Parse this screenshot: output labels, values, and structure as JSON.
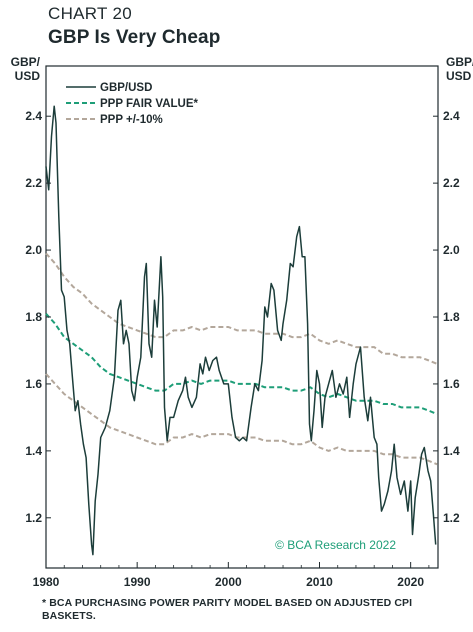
{
  "header": {
    "label": "CHART 20",
    "title": "GBP Is Very Cheap"
  },
  "footnote": "* BCA PURCHASING POWER PARITY MODEL BASED ON ADJUSTED CPI BASKETS.",
  "watermark": "© BCA Research 2022",
  "colors": {
    "gbpusd": "#1c3d3a",
    "ppp": "#1e9e78",
    "band": "#b3a79b",
    "frame": "#1f2a2e"
  },
  "chart_data": {
    "type": "line",
    "title": "GBP Is Very Cheap",
    "ylabel_left": "GBP/\nUSD",
    "ylabel_right": "GBP/\nUSD",
    "xlim": [
      1980,
      2023
    ],
    "ylim": [
      1.05,
      2.55
    ],
    "yticks": [
      1.2,
      1.4,
      1.6,
      1.8,
      2.0,
      2.2,
      2.4
    ],
    "ytick_labels": [
      "1.2",
      "1.4",
      "1.6",
      "1.8",
      "2.0",
      "2.2",
      "2.4"
    ],
    "xticks": [
      1980,
      1990,
      2000,
      2010,
      2020
    ],
    "xtick_labels": [
      "1980",
      "1990",
      "2000",
      "2010",
      "2020"
    ],
    "grid": false,
    "legend_position": "top-left",
    "legend": [
      {
        "label": "GBP/USD",
        "style": "solid",
        "color_key": "gbpusd"
      },
      {
        "label": "PPP FAIR VALUE*",
        "style": "dashed",
        "color_key": "ppp"
      },
      {
        "label": "PPP +/-10%",
        "style": "dashed",
        "color_key": "band"
      }
    ],
    "series": [
      {
        "name": "GBP/USD",
        "style": "solid",
        "points": [
          [
            1980.0,
            2.25
          ],
          [
            1980.3,
            2.18
          ],
          [
            1980.6,
            2.34
          ],
          [
            1980.9,
            2.43
          ],
          [
            1981.1,
            2.38
          ],
          [
            1981.4,
            2.1
          ],
          [
            1981.7,
            1.88
          ],
          [
            1982.0,
            1.86
          ],
          [
            1982.3,
            1.76
          ],
          [
            1982.6,
            1.72
          ],
          [
            1982.9,
            1.62
          ],
          [
            1983.2,
            1.52
          ],
          [
            1983.5,
            1.55
          ],
          [
            1983.8,
            1.48
          ],
          [
            1984.1,
            1.42
          ],
          [
            1984.4,
            1.38
          ],
          [
            1984.7,
            1.24
          ],
          [
            1985.0,
            1.12
          ],
          [
            1985.15,
            1.09
          ],
          [
            1985.4,
            1.25
          ],
          [
            1985.7,
            1.33
          ],
          [
            1986.0,
            1.44
          ],
          [
            1986.5,
            1.47
          ],
          [
            1987.0,
            1.52
          ],
          [
            1987.5,
            1.62
          ],
          [
            1987.9,
            1.82
          ],
          [
            1988.2,
            1.85
          ],
          [
            1988.5,
            1.72
          ],
          [
            1988.8,
            1.76
          ],
          [
            1989.1,
            1.72
          ],
          [
            1989.4,
            1.58
          ],
          [
            1989.7,
            1.55
          ],
          [
            1990.0,
            1.62
          ],
          [
            1990.4,
            1.68
          ],
          [
            1990.8,
            1.92
          ],
          [
            1991.0,
            1.96
          ],
          [
            1991.3,
            1.72
          ],
          [
            1991.6,
            1.68
          ],
          [
            1991.9,
            1.85
          ],
          [
            1992.2,
            1.77
          ],
          [
            1992.6,
            1.98
          ],
          [
            1992.8,
            1.86
          ],
          [
            1993.0,
            1.53
          ],
          [
            1993.3,
            1.43
          ],
          [
            1993.6,
            1.5
          ],
          [
            1994.0,
            1.5
          ],
          [
            1994.5,
            1.55
          ],
          [
            1995.0,
            1.58
          ],
          [
            1995.3,
            1.62
          ],
          [
            1995.6,
            1.56
          ],
          [
            1996.0,
            1.53
          ],
          [
            1996.5,
            1.56
          ],
          [
            1996.9,
            1.66
          ],
          [
            1997.2,
            1.63
          ],
          [
            1997.5,
            1.68
          ],
          [
            1997.9,
            1.64
          ],
          [
            1998.3,
            1.67
          ],
          [
            1998.7,
            1.68
          ],
          [
            1999.0,
            1.64
          ],
          [
            1999.5,
            1.6
          ],
          [
            2000.0,
            1.6
          ],
          [
            2000.4,
            1.5
          ],
          [
            2000.8,
            1.44
          ],
          [
            2001.2,
            1.43
          ],
          [
            2001.6,
            1.44
          ],
          [
            2002.0,
            1.43
          ],
          [
            2002.5,
            1.53
          ],
          [
            2002.9,
            1.6
          ],
          [
            2003.3,
            1.58
          ],
          [
            2003.7,
            1.67
          ],
          [
            2004.0,
            1.83
          ],
          [
            2004.3,
            1.8
          ],
          [
            2004.7,
            1.9
          ],
          [
            2005.0,
            1.88
          ],
          [
            2005.4,
            1.76
          ],
          [
            2005.8,
            1.73
          ],
          [
            2006.0,
            1.78
          ],
          [
            2006.4,
            1.85
          ],
          [
            2006.8,
            1.96
          ],
          [
            2007.1,
            1.95
          ],
          [
            2007.5,
            2.04
          ],
          [
            2007.8,
            2.07
          ],
          [
            2008.1,
            1.98
          ],
          [
            2008.4,
            1.98
          ],
          [
            2008.7,
            1.78
          ],
          [
            2008.9,
            1.48
          ],
          [
            2009.1,
            1.43
          ],
          [
            2009.4,
            1.52
          ],
          [
            2009.7,
            1.64
          ],
          [
            2010.0,
            1.6
          ],
          [
            2010.3,
            1.47
          ],
          [
            2010.6,
            1.56
          ],
          [
            2011.0,
            1.6
          ],
          [
            2011.4,
            1.64
          ],
          [
            2011.8,
            1.56
          ],
          [
            2012.2,
            1.6
          ],
          [
            2012.6,
            1.57
          ],
          [
            2013.0,
            1.62
          ],
          [
            2013.3,
            1.5
          ],
          [
            2013.7,
            1.6
          ],
          [
            2014.0,
            1.66
          ],
          [
            2014.5,
            1.71
          ],
          [
            2014.9,
            1.56
          ],
          [
            2015.3,
            1.49
          ],
          [
            2015.6,
            1.56
          ],
          [
            2016.0,
            1.44
          ],
          [
            2016.3,
            1.42
          ],
          [
            2016.5,
            1.32
          ],
          [
            2016.8,
            1.22
          ],
          [
            2017.1,
            1.24
          ],
          [
            2017.5,
            1.28
          ],
          [
            2017.9,
            1.34
          ],
          [
            2018.2,
            1.42
          ],
          [
            2018.5,
            1.32
          ],
          [
            2018.9,
            1.27
          ],
          [
            2019.3,
            1.31
          ],
          [
            2019.7,
            1.22
          ],
          [
            2020.0,
            1.31
          ],
          [
            2020.2,
            1.15
          ],
          [
            2020.5,
            1.26
          ],
          [
            2020.9,
            1.33
          ],
          [
            2021.2,
            1.39
          ],
          [
            2021.5,
            1.41
          ],
          [
            2021.9,
            1.34
          ],
          [
            2022.2,
            1.31
          ],
          [
            2022.5,
            1.21
          ],
          [
            2022.75,
            1.12
          ]
        ]
      },
      {
        "name": "PPP FAIR VALUE*",
        "style": "dashed",
        "points": [
          [
            1980.0,
            1.81
          ],
          [
            1981.0,
            1.78
          ],
          [
            1982.0,
            1.74
          ],
          [
            1983.0,
            1.72
          ],
          [
            1984.0,
            1.7
          ],
          [
            1985.0,
            1.68
          ],
          [
            1986.0,
            1.65
          ],
          [
            1987.0,
            1.63
          ],
          [
            1988.0,
            1.62
          ],
          [
            1989.0,
            1.61
          ],
          [
            1990.0,
            1.6
          ],
          [
            1991.0,
            1.59
          ],
          [
            1992.0,
            1.58
          ],
          [
            1993.0,
            1.58
          ],
          [
            1994.0,
            1.6
          ],
          [
            1995.0,
            1.6
          ],
          [
            1996.0,
            1.61
          ],
          [
            1997.0,
            1.6
          ],
          [
            1998.0,
            1.61
          ],
          [
            1999.0,
            1.61
          ],
          [
            2000.0,
            1.61
          ],
          [
            2001.0,
            1.6
          ],
          [
            2002.0,
            1.6
          ],
          [
            2003.0,
            1.6
          ],
          [
            2004.0,
            1.59
          ],
          [
            2005.0,
            1.59
          ],
          [
            2006.0,
            1.59
          ],
          [
            2007.0,
            1.58
          ],
          [
            2008.0,
            1.58
          ],
          [
            2009.0,
            1.59
          ],
          [
            2010.0,
            1.57
          ],
          [
            2011.0,
            1.56
          ],
          [
            2012.0,
            1.57
          ],
          [
            2013.0,
            1.56
          ],
          [
            2014.0,
            1.55
          ],
          [
            2015.0,
            1.55
          ],
          [
            2016.0,
            1.55
          ],
          [
            2017.0,
            1.54
          ],
          [
            2018.0,
            1.54
          ],
          [
            2019.0,
            1.53
          ],
          [
            2020.0,
            1.53
          ],
          [
            2021.0,
            1.53
          ],
          [
            2022.0,
            1.52
          ],
          [
            2022.9,
            1.51
          ]
        ]
      },
      {
        "name": "PPP +/-10%",
        "style": "dashed",
        "points": [
          [
            1980.0,
            1.99
          ],
          [
            1981.0,
            1.96
          ],
          [
            1982.0,
            1.92
          ],
          [
            1983.0,
            1.89
          ],
          [
            1984.0,
            1.87
          ],
          [
            1985.0,
            1.84
          ],
          [
            1986.0,
            1.82
          ],
          [
            1987.0,
            1.8
          ],
          [
            1988.0,
            1.78
          ],
          [
            1989.0,
            1.77
          ],
          [
            1990.0,
            1.76
          ],
          [
            1991.0,
            1.75
          ],
          [
            1992.0,
            1.74
          ],
          [
            1993.0,
            1.74
          ],
          [
            1994.0,
            1.76
          ],
          [
            1995.0,
            1.76
          ],
          [
            1996.0,
            1.77
          ],
          [
            1997.0,
            1.76
          ],
          [
            1998.0,
            1.77
          ],
          [
            1999.0,
            1.77
          ],
          [
            2000.0,
            1.77
          ],
          [
            2001.0,
            1.76
          ],
          [
            2002.0,
            1.76
          ],
          [
            2003.0,
            1.76
          ],
          [
            2004.0,
            1.75
          ],
          [
            2005.0,
            1.75
          ],
          [
            2006.0,
            1.75
          ],
          [
            2007.0,
            1.74
          ],
          [
            2008.0,
            1.74
          ],
          [
            2009.0,
            1.75
          ],
          [
            2010.0,
            1.73
          ],
          [
            2011.0,
            1.72
          ],
          [
            2012.0,
            1.73
          ],
          [
            2013.0,
            1.72
          ],
          [
            2014.0,
            1.71
          ],
          [
            2015.0,
            1.71
          ],
          [
            2016.0,
            1.71
          ],
          [
            2017.0,
            1.69
          ],
          [
            2018.0,
            1.69
          ],
          [
            2019.0,
            1.68
          ],
          [
            2020.0,
            1.68
          ],
          [
            2021.0,
            1.68
          ],
          [
            2022.0,
            1.67
          ],
          [
            2022.9,
            1.66
          ]
        ]
      },
      {
        "name": "",
        "style": "dashed",
        "band_of": "PPP +/-10%",
        "points": [
          [
            1980.0,
            1.63
          ],
          [
            1981.0,
            1.6
          ],
          [
            1982.0,
            1.57
          ],
          [
            1983.0,
            1.55
          ],
          [
            1984.0,
            1.53
          ],
          [
            1985.0,
            1.51
          ],
          [
            1986.0,
            1.49
          ],
          [
            1987.0,
            1.47
          ],
          [
            1988.0,
            1.46
          ],
          [
            1989.0,
            1.45
          ],
          [
            1990.0,
            1.44
          ],
          [
            1991.0,
            1.43
          ],
          [
            1992.0,
            1.42
          ],
          [
            1993.0,
            1.42
          ],
          [
            1994.0,
            1.44
          ],
          [
            1995.0,
            1.44
          ],
          [
            1996.0,
            1.45
          ],
          [
            1997.0,
            1.44
          ],
          [
            1998.0,
            1.45
          ],
          [
            1999.0,
            1.45
          ],
          [
            2000.0,
            1.45
          ],
          [
            2001.0,
            1.44
          ],
          [
            2002.0,
            1.44
          ],
          [
            2003.0,
            1.44
          ],
          [
            2004.0,
            1.43
          ],
          [
            2005.0,
            1.43
          ],
          [
            2006.0,
            1.43
          ],
          [
            2007.0,
            1.42
          ],
          [
            2008.0,
            1.42
          ],
          [
            2009.0,
            1.43
          ],
          [
            2010.0,
            1.41
          ],
          [
            2011.0,
            1.4
          ],
          [
            2012.0,
            1.41
          ],
          [
            2013.0,
            1.4
          ],
          [
            2014.0,
            1.4
          ],
          [
            2015.0,
            1.4
          ],
          [
            2016.0,
            1.4
          ],
          [
            2017.0,
            1.39
          ],
          [
            2018.0,
            1.39
          ],
          [
            2019.0,
            1.38
          ],
          [
            2020.0,
            1.38
          ],
          [
            2021.0,
            1.38
          ],
          [
            2022.0,
            1.37
          ],
          [
            2022.9,
            1.36
          ]
        ]
      }
    ]
  }
}
